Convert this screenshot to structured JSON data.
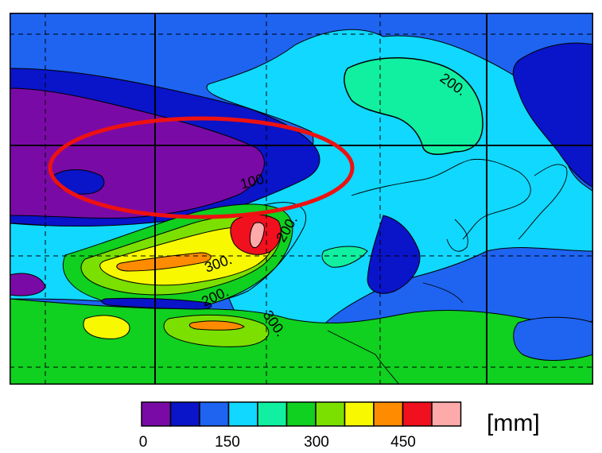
{
  "map": {
    "contour_labels": [
      "200.",
      "100.",
      "200.",
      "300.",
      "200.",
      "300."
    ]
  },
  "legend": {
    "colors": [
      "#7a0aa6",
      "#0a14c8",
      "#1e64f0",
      "#10d8ff",
      "#10f0a0",
      "#10d020",
      "#7be000",
      "#f8f800",
      "#ff8c00",
      "#f0101e",
      "#ffaaaa"
    ],
    "ticks": [
      "0",
      "150",
      "300",
      "450"
    ],
    "unit": "[mm]"
  },
  "annotation": {
    "highlight_color": "#ee1111"
  }
}
